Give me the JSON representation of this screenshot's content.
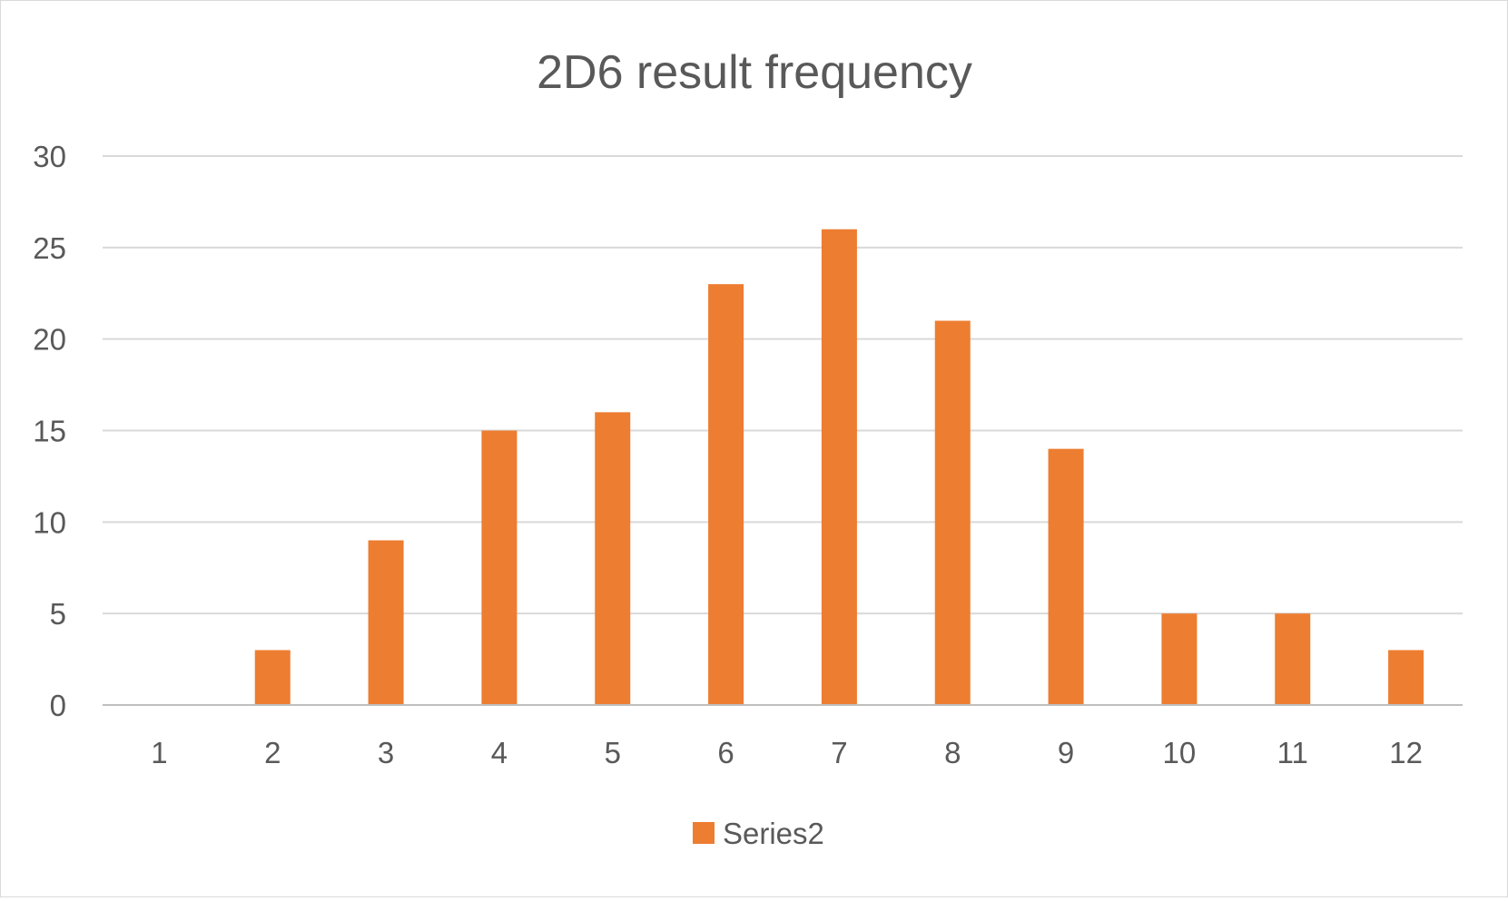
{
  "chart_data": {
    "type": "bar",
    "title": "2D6 result frequency",
    "xlabel": "",
    "ylabel": "",
    "categories": [
      "1",
      "2",
      "3",
      "4",
      "5",
      "6",
      "7",
      "8",
      "9",
      "10",
      "11",
      "12"
    ],
    "series": [
      {
        "name": "Series2",
        "color": "#ED7D31",
        "values": [
          0,
          3,
          9,
          15,
          16,
          23,
          26,
          21,
          14,
          5,
          5,
          3
        ]
      }
    ],
    "ylim": [
      0,
      30
    ],
    "yticks": [
      0,
      5,
      10,
      15,
      20,
      25,
      30
    ],
    "grid": true,
    "legend_position": "bottom"
  }
}
